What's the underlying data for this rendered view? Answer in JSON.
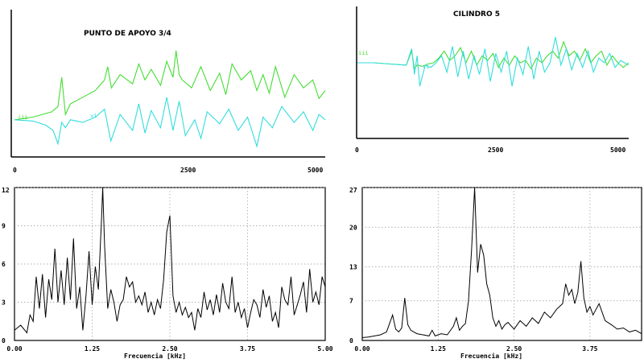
{
  "chart_data": [
    {
      "type": "line",
      "title": "PUNTO DE APOYO  3/4",
      "x_ticks": [
        "0",
        "2500",
        "5000"
      ],
      "xlim": [
        0,
        5000
      ],
      "series": [
        {
          "label": "iii",
          "color": "#44dd33",
          "x": [
            0,
            300,
            600,
            700,
            760,
            820,
            900,
            1100,
            1300,
            1450,
            1500,
            1560,
            1700,
            1900,
            2000,
            2100,
            2200,
            2350,
            2450,
            2550,
            2600,
            2650,
            2700,
            2850,
            3000,
            3150,
            3300,
            3400,
            3500,
            3650,
            3800,
            3900,
            4000,
            4100,
            4200,
            4350,
            4500,
            4650,
            4800,
            4900,
            5000
          ],
          "y": [
            0.28,
            0.3,
            0.34,
            0.38,
            0.6,
            0.32,
            0.4,
            0.45,
            0.5,
            0.58,
            0.68,
            0.52,
            0.62,
            0.55,
            0.7,
            0.58,
            0.66,
            0.54,
            0.72,
            0.6,
            0.8,
            0.62,
            0.58,
            0.52,
            0.68,
            0.5,
            0.63,
            0.47,
            0.7,
            0.58,
            0.65,
            0.5,
            0.62,
            0.48,
            0.68,
            0.45,
            0.62,
            0.52,
            0.58,
            0.44,
            0.5
          ]
        },
        {
          "label": "vi",
          "color": "#33dddd",
          "x": [
            0,
            300,
            500,
            620,
            700,
            760,
            820,
            900,
            1100,
            1300,
            1450,
            1550,
            1700,
            1900,
            2000,
            2100,
            2200,
            2350,
            2450,
            2550,
            2650,
            2750,
            2900,
            3000,
            3100,
            3300,
            3450,
            3600,
            3750,
            3900,
            4000,
            4150,
            4300,
            4500,
            4650,
            4800,
            4900,
            5000
          ],
          "y": [
            0.28,
            0.27,
            0.24,
            0.2,
            0.1,
            0.26,
            0.22,
            0.28,
            0.26,
            0.3,
            0.36,
            0.12,
            0.32,
            0.2,
            0.4,
            0.18,
            0.35,
            0.22,
            0.45,
            0.2,
            0.42,
            0.16,
            0.28,
            0.14,
            0.34,
            0.25,
            0.36,
            0.2,
            0.3,
            0.08,
            0.3,
            0.22,
            0.38,
            0.26,
            0.34,
            0.2,
            0.32,
            0.28
          ]
        }
      ]
    },
    {
      "type": "line",
      "title": "CILINDRO 5",
      "x_ticks": [
        "0",
        "2500",
        "5000"
      ],
      "xlim": [
        0,
        5000
      ],
      "series": [
        {
          "label": "iii",
          "color": "#44dd33",
          "x": [
            0,
            300,
            600,
            900,
            1000,
            1050,
            1100,
            1200,
            1300,
            1400,
            1500,
            1600,
            1700,
            1800,
            1900,
            2000,
            2100,
            2200,
            2300,
            2400,
            2500,
            2600,
            2700,
            2800,
            2900,
            3000,
            3100,
            3200,
            3300,
            3400,
            3500,
            3600,
            3700,
            3800,
            3900,
            4000,
            4100,
            4200,
            4300,
            4400,
            4500,
            4600,
            4700,
            4800,
            4900,
            5000
          ],
          "y": [
            0.6,
            0.6,
            0.59,
            0.58,
            0.7,
            0.55,
            0.58,
            0.57,
            0.59,
            0.6,
            0.64,
            0.7,
            0.62,
            0.66,
            0.73,
            0.6,
            0.7,
            0.58,
            0.66,
            0.62,
            0.68,
            0.56,
            0.64,
            0.58,
            0.66,
            0.6,
            0.62,
            0.55,
            0.64,
            0.6,
            0.66,
            0.7,
            0.64,
            0.78,
            0.66,
            0.7,
            0.62,
            0.72,
            0.6,
            0.66,
            0.7,
            0.58,
            0.66,
            0.6,
            0.56,
            0.6
          ]
        },
        {
          "label": "vi",
          "color": "#33dddd",
          "x": [
            0,
            300,
            600,
            900,
            1000,
            1050,
            1100,
            1150,
            1250,
            1350,
            1450,
            1550,
            1650,
            1750,
            1850,
            1950,
            2050,
            2150,
            2250,
            2350,
            2450,
            2550,
            2650,
            2750,
            2850,
            2950,
            3050,
            3150,
            3250,
            3350,
            3450,
            3550,
            3650,
            3750,
            3850,
            3950,
            4050,
            4150,
            4250,
            4350,
            4450,
            4550,
            4650,
            4750,
            4850,
            5000
          ],
          "y": [
            0.6,
            0.6,
            0.59,
            0.58,
            0.72,
            0.5,
            0.66,
            0.4,
            0.58,
            0.56,
            0.6,
            0.66,
            0.52,
            0.74,
            0.48,
            0.7,
            0.46,
            0.66,
            0.5,
            0.72,
            0.44,
            0.68,
            0.52,
            0.7,
            0.4,
            0.64,
            0.5,
            0.74,
            0.46,
            0.7,
            0.52,
            0.6,
            0.82,
            0.58,
            0.72,
            0.54,
            0.68,
            0.56,
            0.7,
            0.52,
            0.64,
            0.6,
            0.68,
            0.56,
            0.62,
            0.58
          ]
        }
      ]
    },
    {
      "type": "line",
      "xlabel": "Frecuencia [kHz]",
      "x_ticks": [
        "0.00",
        "1.25",
        "2.50",
        "3.75",
        "5.00"
      ],
      "y_ticks": [
        "0",
        "3",
        "6",
        "9",
        "12"
      ],
      "xlim": [
        0,
        5
      ],
      "ylim": [
        0,
        12
      ],
      "series": [
        {
          "color": "#000000",
          "x": [
            0,
            0.1,
            0.2,
            0.25,
            0.3,
            0.35,
            0.4,
            0.45,
            0.5,
            0.55,
            0.6,
            0.65,
            0.7,
            0.75,
            0.8,
            0.85,
            0.9,
            0.95,
            1.0,
            1.05,
            1.1,
            1.15,
            1.2,
            1.25,
            1.3,
            1.35,
            1.4,
            1.42,
            1.45,
            1.5,
            1.55,
            1.6,
            1.65,
            1.7,
            1.75,
            1.8,
            1.85,
            1.9,
            1.95,
            2.0,
            2.05,
            2.1,
            2.15,
            2.2,
            2.25,
            2.3,
            2.35,
            2.4,
            2.45,
            2.5,
            2.55,
            2.6,
            2.65,
            2.7,
            2.75,
            2.8,
            2.85,
            2.9,
            2.95,
            3.0,
            3.05,
            3.1,
            3.15,
            3.2,
            3.25,
            3.3,
            3.35,
            3.4,
            3.45,
            3.5,
            3.55,
            3.6,
            3.65,
            3.7,
            3.75,
            3.8,
            3.85,
            3.9,
            3.95,
            4.0,
            4.05,
            4.1,
            4.15,
            4.2,
            4.25,
            4.3,
            4.35,
            4.4,
            4.45,
            4.5,
            4.55,
            4.6,
            4.65,
            4.7,
            4.75,
            4.8,
            4.85,
            4.9,
            4.95,
            5.0
          ],
          "y": [
            0.8,
            1.2,
            0.6,
            2.0,
            1.5,
            5.0,
            2.5,
            5.2,
            1.8,
            4.8,
            3.2,
            7.2,
            3.0,
            5.5,
            2.8,
            6.5,
            3.2,
            8.0,
            2.5,
            4.2,
            0.8,
            3.5,
            7.0,
            2.8,
            5.8,
            4.0,
            9.5,
            12.0,
            7.5,
            2.5,
            4.0,
            3.0,
            1.5,
            2.8,
            3.2,
            5.0,
            4.2,
            4.6,
            3.0,
            3.5,
            2.8,
            3.8,
            2.2,
            3.0,
            2.0,
            3.2,
            2.5,
            4.8,
            8.5,
            9.8,
            3.5,
            2.2,
            3.0,
            2.0,
            2.6,
            1.8,
            2.2,
            0.8,
            2.5,
            1.8,
            3.8,
            2.4,
            3.2,
            2.0,
            3.6,
            2.2,
            4.5,
            3.0,
            2.5,
            5.0,
            2.2,
            3.0,
            1.8,
            2.5,
            1.0,
            2.2,
            3.2,
            2.8,
            1.8,
            4.0,
            2.6,
            3.5,
            1.5,
            2.2,
            1.0,
            4.2,
            3.2,
            2.8,
            5.0,
            2.0,
            2.8,
            3.6,
            4.6,
            2.2,
            5.6,
            3.0,
            3.8,
            2.8,
            5.0,
            4.2
          ]
        }
      ]
    },
    {
      "type": "line",
      "xlabel": "Frecuencia [kHz]",
      "x_ticks": [
        "0.00",
        "1.25",
        "2.50",
        "3.75"
      ],
      "y_ticks": [
        "0",
        "7",
        "13",
        "20",
        "27"
      ],
      "xlim": [
        0,
        4.6
      ],
      "ylim": [
        0,
        27
      ],
      "series": [
        {
          "color": "#000000",
          "x": [
            0,
            0.1,
            0.2,
            0.3,
            0.4,
            0.45,
            0.5,
            0.55,
            0.6,
            0.65,
            0.7,
            0.75,
            0.8,
            0.9,
            1.0,
            1.1,
            1.15,
            1.2,
            1.3,
            1.4,
            1.5,
            1.55,
            1.6,
            1.65,
            1.7,
            1.75,
            1.8,
            1.85,
            1.9,
            1.95,
            2.0,
            2.05,
            2.1,
            2.15,
            2.2,
            2.25,
            2.3,
            2.35,
            2.4,
            2.5,
            2.6,
            2.7,
            2.8,
            2.9,
            3.0,
            3.1,
            3.2,
            3.3,
            3.35,
            3.4,
            3.45,
            3.5,
            3.55,
            3.6,
            3.65,
            3.7,
            3.75,
            3.8,
            3.85,
            3.9,
            4.0,
            4.1,
            4.2,
            4.3,
            4.4,
            4.5,
            4.6
          ],
          "y": [
            0.5,
            0.6,
            0.8,
            1.0,
            1.5,
            3.0,
            4.5,
            2.0,
            1.5,
            2.2,
            7.5,
            2.8,
            1.8,
            1.2,
            1.0,
            0.8,
            1.8,
            0.8,
            1.2,
            1.0,
            2.5,
            4.0,
            1.8,
            2.5,
            3.0,
            7.0,
            16.0,
            27.0,
            12.0,
            17.0,
            15.0,
            10.0,
            8.0,
            4.0,
            2.5,
            3.5,
            2.0,
            2.8,
            3.2,
            2.0,
            3.5,
            2.5,
            4.0,
            3.0,
            5.0,
            4.0,
            5.5,
            6.5,
            10.0,
            8.0,
            9.0,
            6.5,
            8.5,
            14.0,
            7.5,
            5.0,
            6.0,
            4.5,
            5.5,
            6.5,
            3.5,
            2.8,
            2.0,
            2.2,
            1.5,
            1.8,
            1.2
          ]
        }
      ]
    }
  ]
}
